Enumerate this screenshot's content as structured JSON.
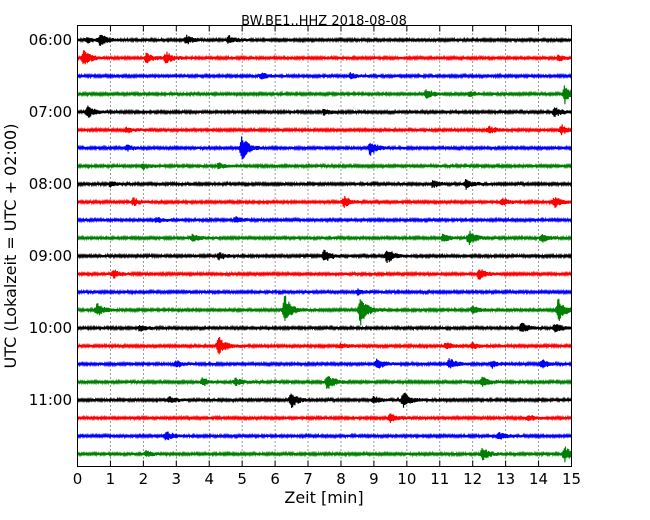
{
  "chart_data": {
    "type": "line",
    "title": "BW.BE1..HHZ 2018-08-08",
    "xlabel": "Zeit  [min]",
    "ylabel": "UTC (Lokalzeit = UTC + 02:00)",
    "xlim": [
      0,
      15
    ],
    "x_ticks": [
      0,
      1,
      2,
      3,
      4,
      5,
      6,
      7,
      8,
      9,
      10,
      11,
      12,
      13,
      14,
      15
    ],
    "x_tick_labels": [
      "0",
      "1",
      "2",
      "3",
      "4",
      "5",
      "6",
      "7",
      "8",
      "9",
      "10",
      "11",
      "12",
      "13",
      "14",
      "15"
    ],
    "y_tick_labels": [
      "06:00",
      "07:00",
      "08:00",
      "09:00",
      "10:00",
      "11:00"
    ],
    "y_tick_trace_index": [
      0,
      4,
      8,
      12,
      16,
      20
    ],
    "grid": "vertical-dotted",
    "trace_interval_minutes": 15,
    "colors": [
      "#000000",
      "#ff0000",
      "#0000ff",
      "#008000"
    ],
    "traces": [
      {
        "start": "06:00",
        "color": "#000000",
        "events": [
          [
            0.7,
            0.6
          ],
          [
            3.3,
            0.5
          ],
          [
            4.6,
            0.4
          ],
          [
            0.3,
            0.3
          ]
        ]
      },
      {
        "start": "06:15",
        "color": "#ff0000",
        "events": [
          [
            0.2,
            0.9
          ],
          [
            2.1,
            0.5
          ],
          [
            2.7,
            0.6
          ],
          [
            14.6,
            0.3
          ]
        ]
      },
      {
        "start": "06:30",
        "color": "#0000ff",
        "events": [
          [
            5.6,
            0.4
          ],
          [
            8.3,
            0.3
          ]
        ]
      },
      {
        "start": "06:45",
        "color": "#008000",
        "events": [
          [
            10.6,
            0.5
          ],
          [
            11.9,
            0.3
          ],
          [
            14.8,
            1.0
          ]
        ]
      },
      {
        "start": "07:00",
        "color": "#000000",
        "events": [
          [
            0.3,
            0.7
          ],
          [
            7.5,
            0.3
          ],
          [
            14.5,
            0.5
          ]
        ]
      },
      {
        "start": "07:15",
        "color": "#ff0000",
        "events": [
          [
            1.5,
            0.3
          ],
          [
            12.5,
            0.4
          ],
          [
            14.7,
            0.5
          ]
        ]
      },
      {
        "start": "07:30",
        "color": "#0000ff",
        "events": [
          [
            5.0,
            1.4
          ],
          [
            8.9,
            0.8
          ],
          [
            1.5,
            0.3
          ]
        ]
      },
      {
        "start": "07:45",
        "color": "#008000",
        "events": [
          [
            2.0,
            0.3
          ],
          [
            4.3,
            0.3
          ]
        ]
      },
      {
        "start": "08:00",
        "color": "#000000",
        "events": [
          [
            1.0,
            0.3
          ],
          [
            10.8,
            0.4
          ],
          [
            11.8,
            0.5
          ]
        ]
      },
      {
        "start": "08:15",
        "color": "#ff0000",
        "events": [
          [
            1.7,
            0.4
          ],
          [
            8.1,
            0.6
          ],
          [
            12.9,
            0.4
          ],
          [
            14.5,
            0.6
          ]
        ]
      },
      {
        "start": "08:30",
        "color": "#0000ff",
        "events": [
          [
            2.4,
            0.3
          ],
          [
            4.8,
            0.3
          ]
        ]
      },
      {
        "start": "08:45",
        "color": "#008000",
        "events": [
          [
            3.5,
            0.4
          ],
          [
            11.1,
            0.4
          ],
          [
            11.9,
            0.8
          ],
          [
            14.1,
            0.5
          ]
        ]
      },
      {
        "start": "09:00",
        "color": "#000000",
        "events": [
          [
            4.3,
            0.4
          ],
          [
            7.5,
            0.7
          ],
          [
            9.4,
            0.8
          ]
        ]
      },
      {
        "start": "09:15",
        "color": "#ff0000",
        "events": [
          [
            1.1,
            0.4
          ],
          [
            12.2,
            0.6
          ]
        ]
      },
      {
        "start": "09:30",
        "color": "#0000ff",
        "events": [
          [
            8.5,
            0.3
          ]
        ]
      },
      {
        "start": "09:45",
        "color": "#008000",
        "events": [
          [
            0.6,
            0.7
          ],
          [
            6.3,
            1.6
          ],
          [
            8.6,
            1.8
          ],
          [
            14.6,
            1.3
          ],
          [
            12.0,
            0.4
          ]
        ]
      },
      {
        "start": "10:00",
        "color": "#000000",
        "events": [
          [
            1.9,
            0.3
          ],
          [
            13.5,
            0.6
          ],
          [
            14.5,
            0.5
          ]
        ]
      },
      {
        "start": "10:15",
        "color": "#ff0000",
        "events": [
          [
            4.3,
            1.0
          ],
          [
            8.0,
            0.3
          ],
          [
            11.2,
            0.4
          ],
          [
            12.0,
            0.3
          ]
        ]
      },
      {
        "start": "10:30",
        "color": "#0000ff",
        "events": [
          [
            3.0,
            0.4
          ],
          [
            9.1,
            0.6
          ],
          [
            11.3,
            0.6
          ],
          [
            12.6,
            0.4
          ],
          [
            14.1,
            0.5
          ]
        ]
      },
      {
        "start": "10:45",
        "color": "#008000",
        "events": [
          [
            3.8,
            0.4
          ],
          [
            4.8,
            0.4
          ],
          [
            7.6,
            0.9
          ],
          [
            12.3,
            0.5
          ]
        ]
      },
      {
        "start": "11:00",
        "color": "#000000",
        "events": [
          [
            2.8,
            0.3
          ],
          [
            6.5,
            0.8
          ],
          [
            9.9,
            0.9
          ],
          [
            9.0,
            0.4
          ]
        ]
      },
      {
        "start": "11:15",
        "color": "#ff0000",
        "events": [
          [
            9.5,
            0.4
          ],
          [
            13.7,
            0.3
          ]
        ]
      },
      {
        "start": "11:30",
        "color": "#0000ff",
        "events": [
          [
            2.7,
            0.5
          ],
          [
            12.8,
            0.4
          ]
        ]
      },
      {
        "start": "11:45",
        "color": "#008000",
        "events": [
          [
            2.1,
            0.3
          ],
          [
            12.3,
            0.7
          ],
          [
            14.8,
            0.8
          ]
        ]
      }
    ]
  }
}
